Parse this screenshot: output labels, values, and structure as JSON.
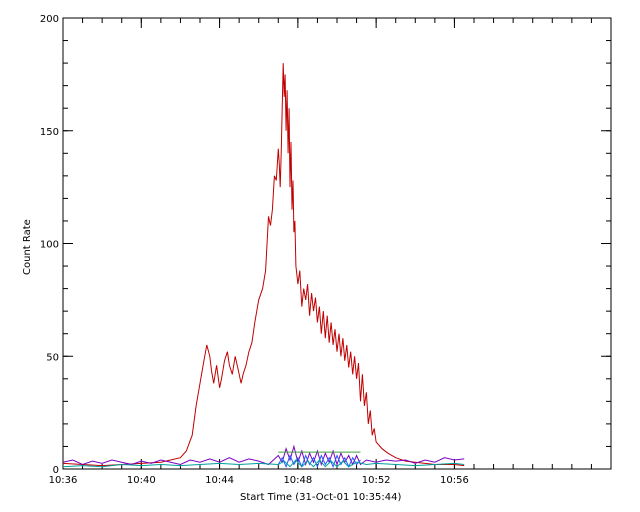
{
  "chart_data": {
    "type": "line",
    "title": "",
    "xlabel": "Start Time (31-Oct-01 10:35:44)",
    "ylabel": "Count Rate",
    "x_unit": "minutes past 10:36",
    "xlim": [
      0,
      28
    ],
    "ylim": [
      0,
      200
    ],
    "x_major_ticks": [
      0,
      4,
      8,
      12,
      16,
      20
    ],
    "x_tick_labels": [
      "10:36",
      "10:40",
      "10:44",
      "10:48",
      "10:52",
      "10:56"
    ],
    "x_minor_step": 1,
    "y_major_ticks": [
      0,
      50,
      100,
      150,
      200
    ],
    "y_tick_labels": [
      "0",
      "50",
      "100",
      "150",
      "200"
    ],
    "y_minor_step": 10,
    "grid": false,
    "legend": "none",
    "series": [
      {
        "color": "#c00000",
        "points": [
          [
            0,
            2.5
          ],
          [
            1,
            2
          ],
          [
            2,
            1.5
          ],
          [
            3,
            2
          ],
          [
            4,
            2.5
          ],
          [
            5,
            3
          ],
          [
            5.5,
            4
          ],
          [
            6,
            5
          ],
          [
            6.3,
            8
          ],
          [
            6.6,
            15
          ],
          [
            6.8,
            28
          ],
          [
            7.0,
            38
          ],
          [
            7.2,
            48
          ],
          [
            7.35,
            55
          ],
          [
            7.5,
            50
          ],
          [
            7.6,
            43
          ],
          [
            7.7,
            38
          ],
          [
            7.85,
            46
          ],
          [
            8.0,
            36
          ],
          [
            8.1,
            40
          ],
          [
            8.25,
            48
          ],
          [
            8.4,
            52
          ],
          [
            8.5,
            46
          ],
          [
            8.65,
            42
          ],
          [
            8.8,
            50
          ],
          [
            8.95,
            44
          ],
          [
            9.1,
            38
          ],
          [
            9.2,
            42
          ],
          [
            9.35,
            46
          ],
          [
            9.5,
            52
          ],
          [
            9.65,
            56
          ],
          [
            9.8,
            65
          ],
          [
            10.0,
            75
          ],
          [
            10.2,
            80
          ],
          [
            10.35,
            88
          ],
          [
            10.5,
            112
          ],
          [
            10.6,
            108
          ],
          [
            10.7,
            115
          ],
          [
            10.8,
            130
          ],
          [
            10.9,
            128
          ],
          [
            11.0,
            142
          ],
          [
            11.05,
            135
          ],
          [
            11.1,
            125
          ],
          [
            11.15,
            140
          ],
          [
            11.2,
            160
          ],
          [
            11.25,
            180
          ],
          [
            11.3,
            165
          ],
          [
            11.35,
            175
          ],
          [
            11.4,
            150
          ],
          [
            11.45,
            168
          ],
          [
            11.5,
            140
          ],
          [
            11.55,
            160
          ],
          [
            11.6,
            125
          ],
          [
            11.65,
            145
          ],
          [
            11.7,
            115
          ],
          [
            11.75,
            128
          ],
          [
            11.8,
            105
          ],
          [
            11.85,
            110
          ],
          [
            11.9,
            90
          ],
          [
            12.0,
            82
          ],
          [
            12.1,
            88
          ],
          [
            12.2,
            72
          ],
          [
            12.3,
            80
          ],
          [
            12.4,
            75
          ],
          [
            12.5,
            82
          ],
          [
            12.6,
            68
          ],
          [
            12.7,
            78
          ],
          [
            12.8,
            70
          ],
          [
            12.9,
            76
          ],
          [
            13.0,
            65
          ],
          [
            13.1,
            72
          ],
          [
            13.2,
            60
          ],
          [
            13.3,
            70
          ],
          [
            13.4,
            58
          ],
          [
            13.5,
            68
          ],
          [
            13.6,
            56
          ],
          [
            13.7,
            65
          ],
          [
            13.8,
            55
          ],
          [
            13.9,
            62
          ],
          [
            14.0,
            52
          ],
          [
            14.1,
            60
          ],
          [
            14.2,
            50
          ],
          [
            14.3,
            58
          ],
          [
            14.4,
            48
          ],
          [
            14.5,
            55
          ],
          [
            14.6,
            45
          ],
          [
            14.7,
            52
          ],
          [
            14.8,
            42
          ],
          [
            14.9,
            50
          ],
          [
            15.0,
            40
          ],
          [
            15.1,
            47
          ],
          [
            15.2,
            30
          ],
          [
            15.3,
            42
          ],
          [
            15.4,
            28
          ],
          [
            15.5,
            34
          ],
          [
            15.6,
            20
          ],
          [
            15.7,
            26
          ],
          [
            15.8,
            15
          ],
          [
            15.9,
            18
          ],
          [
            16.0,
            12
          ],
          [
            16.3,
            9
          ],
          [
            16.6,
            7
          ],
          [
            17.0,
            5
          ],
          [
            17.5,
            3.5
          ],
          [
            18,
            3
          ],
          [
            19,
            2
          ],
          [
            20,
            2
          ],
          [
            20.5,
            1.5
          ]
        ]
      },
      {
        "color": "#7a00c0",
        "points": [
          [
            0,
            3
          ],
          [
            0.5,
            4
          ],
          [
            1,
            2
          ],
          [
            1.5,
            3.5
          ],
          [
            2,
            2.5
          ],
          [
            2.5,
            4
          ],
          [
            3,
            3
          ],
          [
            3.5,
            2
          ],
          [
            4,
            3.5
          ],
          [
            4.5,
            2.5
          ],
          [
            5,
            4
          ],
          [
            5.5,
            3
          ],
          [
            6,
            2
          ],
          [
            6.5,
            4
          ],
          [
            7,
            3
          ],
          [
            7.5,
            4.5
          ],
          [
            8,
            3
          ],
          [
            8.5,
            5
          ],
          [
            9,
            3
          ],
          [
            9.5,
            4.5
          ],
          [
            10,
            3.5
          ],
          [
            10.5,
            2
          ],
          [
            11,
            6
          ],
          [
            11.2,
            3
          ],
          [
            11.4,
            9
          ],
          [
            11.6,
            4
          ],
          [
            11.8,
            10
          ],
          [
            12,
            3
          ],
          [
            12.2,
            8
          ],
          [
            12.4,
            2
          ],
          [
            12.6,
            7
          ],
          [
            12.8,
            3
          ],
          [
            13,
            8
          ],
          [
            13.2,
            2
          ],
          [
            13.4,
            7
          ],
          [
            13.6,
            3
          ],
          [
            13.8,
            8
          ],
          [
            14,
            2
          ],
          [
            14.2,
            7
          ],
          [
            14.4,
            3
          ],
          [
            14.6,
            6
          ],
          [
            14.8,
            2
          ],
          [
            15,
            6
          ],
          [
            15.2,
            2
          ],
          [
            15.5,
            4
          ],
          [
            16,
            3
          ],
          [
            16.5,
            4
          ],
          [
            17,
            3.5
          ],
          [
            17.5,
            4
          ],
          [
            18,
            2.5
          ],
          [
            18.5,
            4
          ],
          [
            19,
            3
          ],
          [
            19.5,
            5
          ],
          [
            20,
            4
          ],
          [
            20.5,
            4.5
          ]
        ]
      },
      {
        "color": "#2060ff",
        "points": [
          [
            11.0,
            2
          ],
          [
            11.2,
            5
          ],
          [
            11.4,
            1
          ],
          [
            11.6,
            6
          ],
          [
            11.8,
            2
          ],
          [
            12,
            5
          ],
          [
            12.2,
            1
          ],
          [
            12.4,
            6
          ],
          [
            12.6,
            2
          ],
          [
            12.8,
            5
          ],
          [
            13,
            1
          ],
          [
            13.2,
            6
          ],
          [
            13.4,
            2
          ],
          [
            13.6,
            5
          ],
          [
            13.8,
            1
          ],
          [
            14,
            6
          ],
          [
            14.2,
            2
          ],
          [
            14.4,
            5
          ],
          [
            14.6,
            1
          ],
          [
            14.8,
            5
          ],
          [
            15,
            2
          ],
          [
            15.2,
            4
          ]
        ]
      },
      {
        "color": "#00a0a0",
        "points": [
          [
            0,
            1
          ],
          [
            1,
            1.5
          ],
          [
            2,
            1
          ],
          [
            3,
            2
          ],
          [
            4,
            1.5
          ],
          [
            5,
            2
          ],
          [
            6,
            1.5
          ],
          [
            7,
            2
          ],
          [
            8,
            2.5
          ],
          [
            9,
            2
          ],
          [
            10,
            2.5
          ],
          [
            11,
            2
          ],
          [
            11.3,
            3.5
          ],
          [
            11.6,
            1
          ],
          [
            11.9,
            4
          ],
          [
            12.2,
            1
          ],
          [
            12.5,
            3.5
          ],
          [
            12.8,
            1
          ],
          [
            13.1,
            4
          ],
          [
            13.4,
            1
          ],
          [
            13.7,
            3.5
          ],
          [
            14,
            1
          ],
          [
            14.3,
            3.5
          ],
          [
            14.6,
            1
          ],
          [
            15,
            3
          ],
          [
            15.5,
            2
          ],
          [
            16,
            2.5
          ],
          [
            17,
            2
          ],
          [
            18,
            1.5
          ],
          [
            19,
            2
          ],
          [
            20,
            2.5
          ],
          [
            20.5,
            2
          ]
        ]
      },
      {
        "color": "#40a040",
        "points": [
          [
            11,
            7.5
          ],
          [
            15.2,
            7.5
          ]
        ]
      }
    ]
  }
}
